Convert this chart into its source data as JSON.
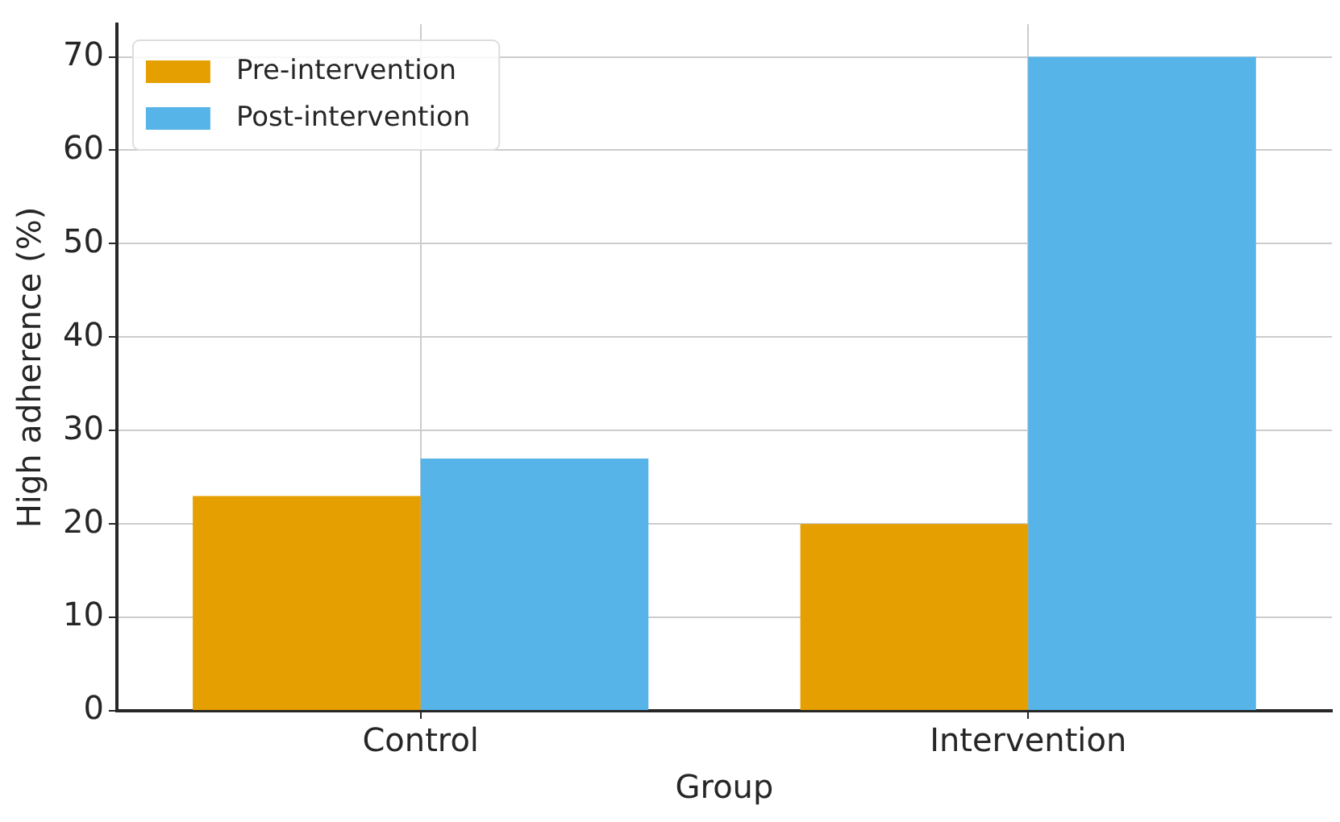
{
  "chart_data": {
    "type": "bar",
    "xlabel": "Group",
    "ylabel": "High adherence (%)",
    "categories": [
      "Control",
      "Intervention"
    ],
    "series": [
      {
        "name": "Pre-intervention",
        "color": "#e69f00",
        "values": [
          23,
          20
        ]
      },
      {
        "name": "Post-intervention",
        "color": "#56b4e9",
        "values": [
          27,
          70
        ]
      }
    ],
    "ylim": [
      0,
      73.5
    ],
    "yticks": [
      0,
      10,
      20,
      30,
      40,
      50,
      60,
      70
    ],
    "grid": true,
    "legend": "top left"
  }
}
